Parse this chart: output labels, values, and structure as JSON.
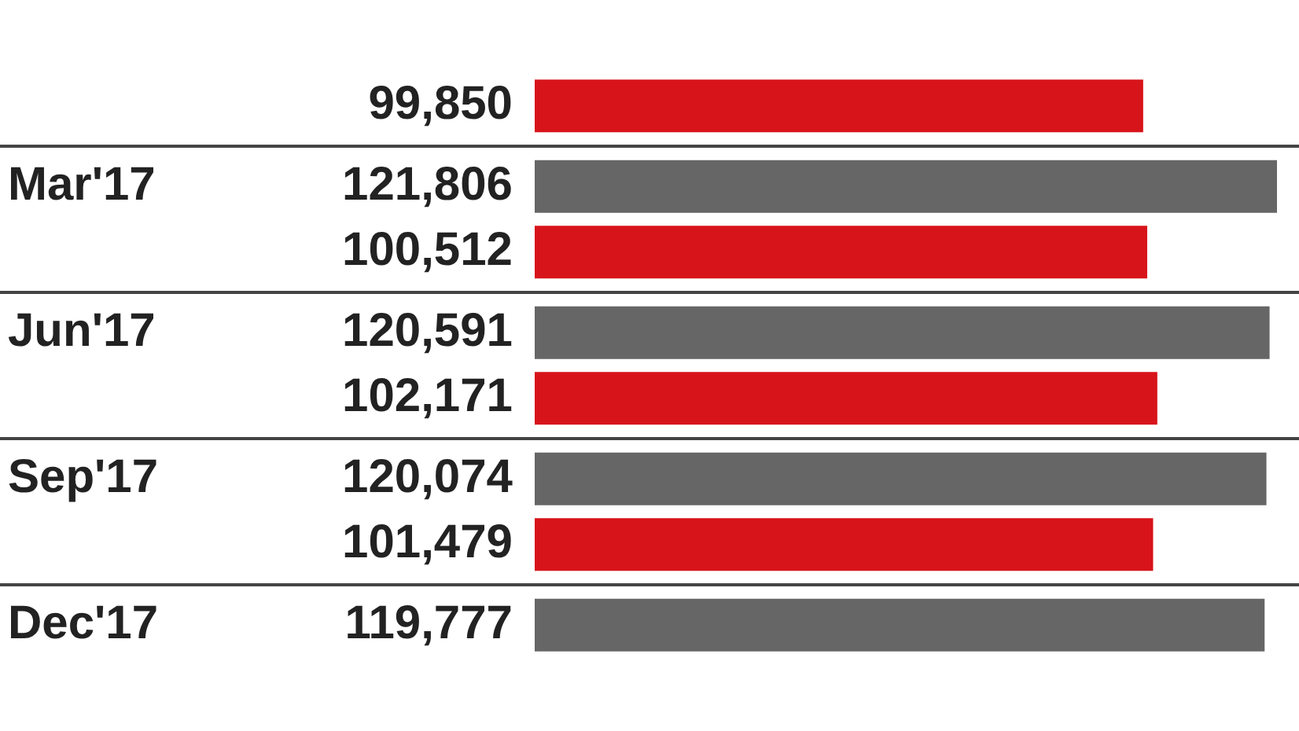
{
  "chart_data": {
    "type": "bar",
    "orientation": "horizontal",
    "categories": [
      null,
      "Mar'17",
      "Jun'17",
      "Sep'17",
      "Dec'17"
    ],
    "series": [
      {
        "color": "#666666",
        "values": [
          null,
          121806,
          120591,
          120074,
          119777
        ],
        "value_labels": [
          null,
          "121,806",
          "120,591",
          "120,074",
          "119,777"
        ]
      },
      {
        "color": "#d7141a",
        "values": [
          99850,
          100512,
          102171,
          101479,
          null
        ],
        "value_labels": [
          "99,850",
          "100,512",
          "102,171",
          "101,479",
          null
        ]
      }
    ],
    "grid": "y",
    "legend": false
  }
}
